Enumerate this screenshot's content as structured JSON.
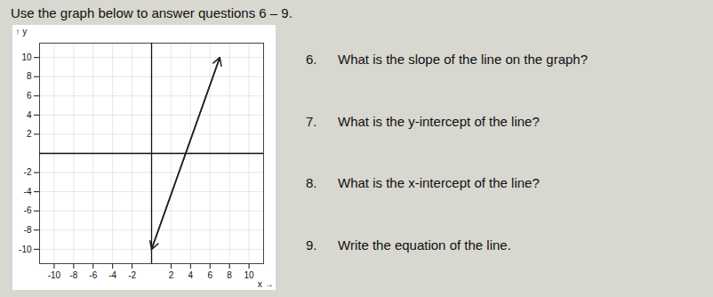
{
  "chart_data": {
    "type": "line",
    "title": "Use the graph below to answer questions 6 – 9.",
    "x": [
      0,
      7
    ],
    "values": [
      -10,
      10
    ],
    "color": "#222222",
    "marker": "arrow",
    "xlabel": "x",
    "ylabel": "y",
    "xlim": [
      -11.5,
      11.5
    ],
    "ylim": [
      -11.5,
      11.5
    ],
    "xticks": [
      -10,
      -8,
      -6,
      -4,
      -2,
      2,
      4,
      6,
      8,
      10
    ],
    "yticks": [
      -10,
      -8,
      -6,
      -4,
      -2,
      2,
      4,
      6,
      8,
      10
    ],
    "grid": true,
    "annotations": [
      {
        "num": "6.",
        "text": "What is the slope of the line on the graph?"
      },
      {
        "num": "7.",
        "text": "What is the y-intercept of the line?"
      },
      {
        "num": "8.",
        "text": "What is the x-intercept of the line?"
      },
      {
        "num": "9.",
        "text": "Write the equation of the line."
      }
    ]
  }
}
